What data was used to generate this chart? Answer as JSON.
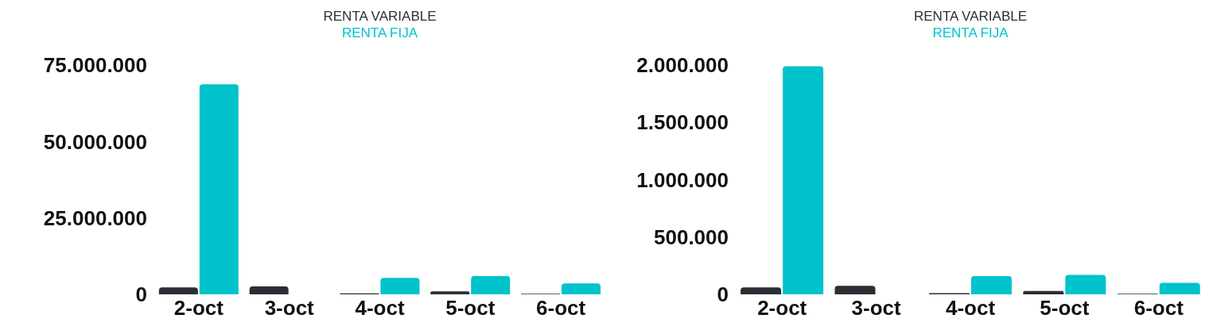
{
  "chart_data": [
    {
      "type": "bar",
      "categories": [
        "2-oct",
        "3-oct",
        "4-oct",
        "5-oct",
        "6-oct"
      ],
      "series": [
        {
          "name": "RENTA VARIABLE",
          "color": "#2b2f33",
          "values": [
            2300000,
            2600000,
            300000,
            1000000,
            200000
          ]
        },
        {
          "name": "RENTA FIJA",
          "color": "#00c2cb",
          "values": [
            68700000,
            null,
            5400000,
            6000000,
            3600000
          ]
        }
      ],
      "ylim": [
        0,
        75000000
      ],
      "yticks": [
        0,
        {
          "value": 25000000,
          "label": "25.000.000"
        },
        {
          "value": 50000000,
          "label": "50.000.000"
        },
        {
          "value": 75000000,
          "label": "75.000.000"
        }
      ],
      "grid": false,
      "legend": "top"
    },
    {
      "type": "bar",
      "categories": [
        "2-oct",
        "3-oct",
        "4-oct",
        "5-oct",
        "6-oct"
      ],
      "series": [
        {
          "name": "RENTA VARIABLE",
          "color": "#2b2f33",
          "values": [
            60000,
            75000,
            10000,
            30000,
            5000
          ]
        },
        {
          "name": "RENTA FIJA",
          "color": "#00c2cb",
          "values": [
            1990000,
            null,
            160000,
            170000,
            100000
          ]
        }
      ],
      "ylim": [
        0,
        2000000
      ],
      "yticks": [
        0,
        {
          "value": 500000,
          "label": "500.000"
        },
        {
          "value": 1000000,
          "label": "1.000.000"
        },
        {
          "value": 1500000,
          "label": "1.500.000"
        },
        {
          "value": 2000000,
          "label": "2.000.000"
        }
      ],
      "grid": false,
      "legend": "top"
    }
  ]
}
